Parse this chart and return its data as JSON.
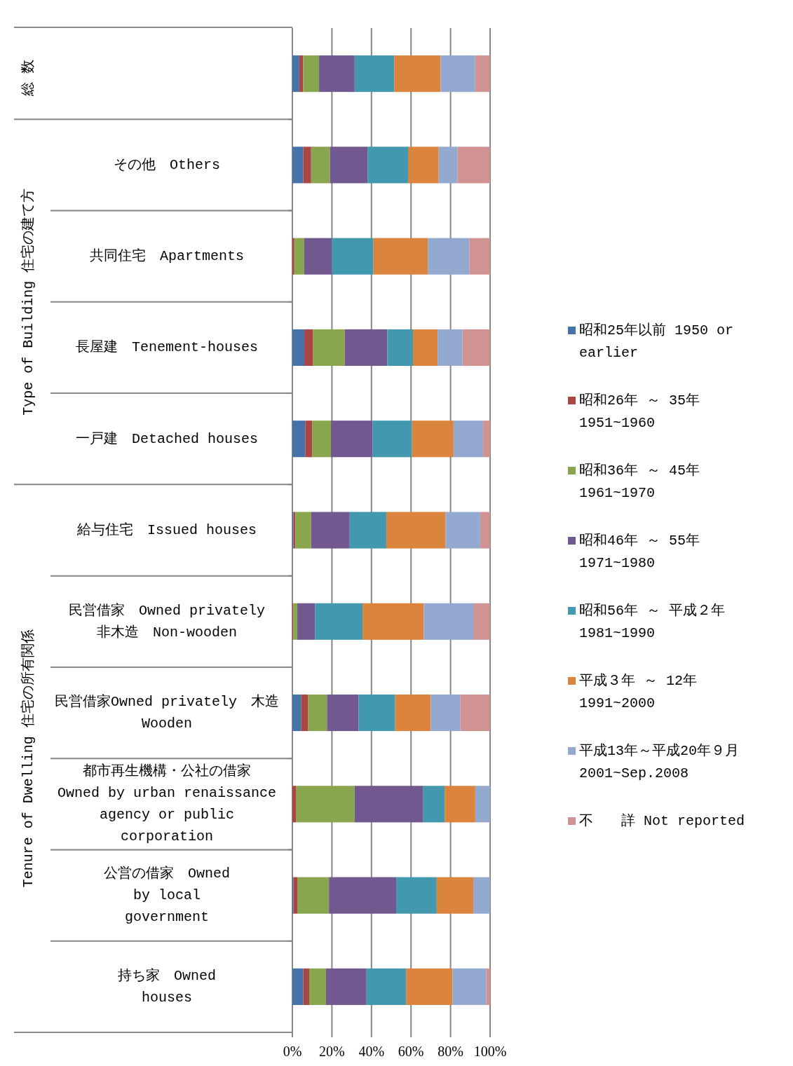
{
  "chart_data": {
    "type": "bar",
    "orientation": "horizontal",
    "stacked": true,
    "categories": [
      null,
      "その他　Others",
      "共同住宅　Apartments",
      "長屋建　Tenement-houses",
      "一戸建　Detached houses",
      "給与住宅　Issued houses",
      "民営借家　Owned privately\n非木造　Non-wooden",
      "民営借家Owned privately　木造　Wooden",
      "都市再生機構・公社の借家\nOwned by urban renaissance\nagency or public\ncorporation",
      "公営の借家　Owned\nby local\ngovernment",
      "持ち家　Owned\nhouses"
    ],
    "series": [
      {
        "name": "昭和25年以前 1950 or earlier",
        "color": "#4572a7",
        "values": [
          3.5,
          5.5,
          0,
          6,
          6.5,
          0.5,
          0,
          4.5,
          0,
          0.5,
          5.5
        ]
      },
      {
        "name": "昭和26年 ～ 35年 1951~1960",
        "color": "#aa4643",
        "values": [
          2,
          4,
          1,
          4.5,
          3.5,
          1,
          0.5,
          3.5,
          2,
          2,
          3
        ]
      },
      {
        "name": "昭和36年 ～ 45年 1961~1970",
        "color": "#89a54e",
        "values": [
          8,
          9.5,
          5,
          16,
          9.5,
          8,
          2,
          9.5,
          29.5,
          16,
          8.5
        ]
      },
      {
        "name": "昭和46年 ～ 55年 1971~1980",
        "color": "#71588f",
        "values": [
          18,
          19,
          14,
          21.5,
          21,
          19.5,
          9,
          16,
          34.5,
          34,
          20.5
        ]
      },
      {
        "name": "昭和56年 ～ 平成２年 1981~1990",
        "color": "#4198af",
        "values": [
          20,
          20.5,
          21,
          13,
          20,
          18.5,
          24,
          18.5,
          11,
          20.5,
          20
        ]
      },
      {
        "name": "平成３年 ～ 12年 1991~2000",
        "color": "#db843d",
        "values": [
          23.5,
          15.5,
          27.5,
          12.5,
          21,
          30,
          31,
          18,
          15.5,
          18.5,
          23.5
        ]
      },
      {
        "name": "平成13年～平成20年９月 2001~Sep.2008",
        "color": "#93a9cf",
        "values": [
          17.5,
          9.5,
          21,
          12.5,
          15,
          17.5,
          25,
          15,
          7.5,
          8.5,
          17
        ]
      },
      {
        "name": "不　　詳 Not reported",
        "color": "#d19392",
        "values": [
          7.5,
          16.5,
          10.5,
          14,
          3.5,
          5,
          8.5,
          15,
          0,
          0,
          2
        ]
      }
    ],
    "xlim": [
      0,
      100
    ],
    "xticks": [
      {
        "value": 0,
        "label": "0%"
      },
      {
        "value": 20,
        "label": "20%"
      },
      {
        "value": 40,
        "label": "40%"
      },
      {
        "value": 60,
        "label": "60%"
      },
      {
        "value": 80,
        "label": "80%"
      },
      {
        "value": 100,
        "label": "100%"
      }
    ],
    "grid": "x",
    "legend": "right",
    "annotations": [
      "総数",
      "Type of Building 住宅の建て方",
      "Tenure of Dwelling 住宅の所有関係"
    ]
  }
}
